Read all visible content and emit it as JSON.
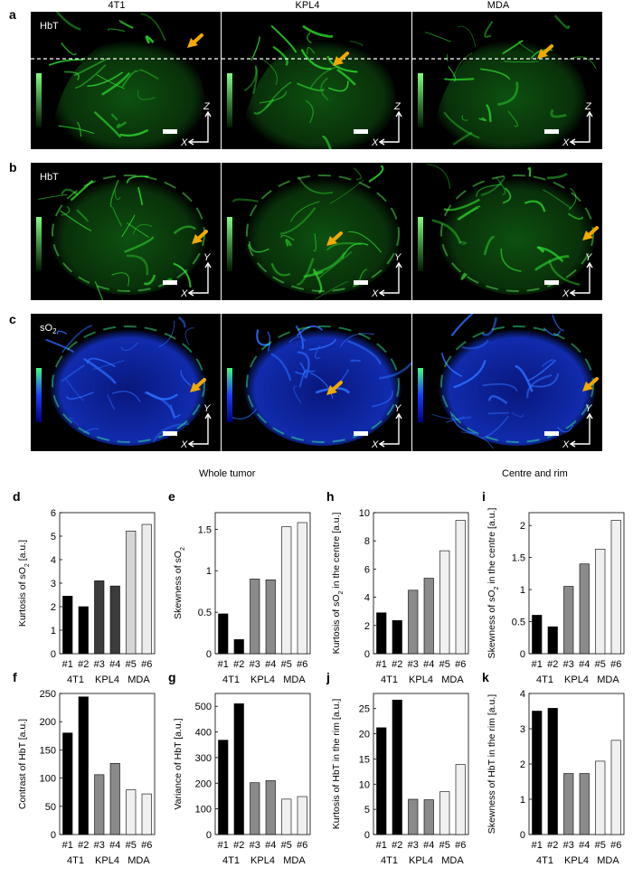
{
  "columns": [
    "4T1",
    "KPL4",
    "MDA"
  ],
  "row_a": {
    "letter": "a",
    "tag": "HbT",
    "axis_h": "X",
    "axis_v": "Z"
  },
  "row_b": {
    "letter": "b",
    "tag": "HbT",
    "axis_h": "X",
    "axis_v": "Y"
  },
  "row_c": {
    "letter": "c",
    "tag_main": "sO",
    "tag_sub": "2",
    "axis_h": "X",
    "axis_v": "Y"
  },
  "section_titles": {
    "left": "Whole tumor",
    "right": "Centre and rim"
  },
  "colors": {
    "dark": "#000000",
    "mid": "#8a8a8a",
    "light": "#ececec",
    "arrow": "#f2a900",
    "green": "#2bd12b",
    "blue": "#1a3cff"
  },
  "chart_data": [
    {
      "id": "d",
      "type": "bar",
      "ylabel": "Kurtosis of sO2 [a.u.]",
      "ylim": [
        0,
        6
      ],
      "yticks": [
        "0",
        "1",
        "2",
        "3",
        "4",
        "5",
        "6"
      ],
      "categories": [
        "#1",
        "#2",
        "#3",
        "#4",
        "#5",
        "#6"
      ],
      "groups": [
        "4T1",
        "KPL4",
        "MDA"
      ],
      "values": [
        2.45,
        2.0,
        3.1,
        2.88,
        5.22,
        5.5
      ],
      "bar_colors": [
        "#000000",
        "#000000",
        "#3c3c3c",
        "#3c3c3c",
        "#d6d6d6",
        "#ececec"
      ]
    },
    {
      "id": "e",
      "type": "bar",
      "ylabel": "Skewness of sO2",
      "ylim": [
        0,
        1.7
      ],
      "yticks": [
        "0",
        "0.5",
        "1",
        "1.5"
      ],
      "categories": [
        "#1",
        "#2",
        "#3",
        "#4",
        "#5",
        "#6"
      ],
      "groups": [
        "4T1",
        "KPL4",
        "MDA"
      ],
      "values": [
        0.48,
        0.17,
        0.9,
        0.89,
        1.53,
        1.58
      ],
      "bar_colors": [
        "#000000",
        "#000000",
        "#8a8a8a",
        "#8a8a8a",
        "#f0f0f0",
        "#f0f0f0"
      ]
    },
    {
      "id": "h",
      "type": "bar",
      "ylabel": "Kurtosis of sO2 in the centre [a.u.]",
      "ylim": [
        0,
        10
      ],
      "yticks": [
        "0",
        "2",
        "4",
        "6",
        "8",
        "10"
      ],
      "categories": [
        "#1",
        "#2",
        "#3",
        "#4",
        "#5",
        "#6"
      ],
      "groups": [
        "4T1",
        "KPL4",
        "MDA"
      ],
      "values": [
        2.9,
        2.35,
        4.5,
        5.35,
        7.3,
        9.45
      ],
      "bar_colors": [
        "#000000",
        "#000000",
        "#8a8a8a",
        "#8a8a8a",
        "#f0f0f0",
        "#f0f0f0"
      ]
    },
    {
      "id": "i",
      "type": "bar",
      "ylabel": "Skewness of sO2 in the centre [a.u.]",
      "ylim": [
        0,
        2.2
      ],
      "yticks": [
        "0",
        "0.5",
        "1",
        "1.5",
        "2"
      ],
      "categories": [
        "#1",
        "#2",
        "#3",
        "#4",
        "#5",
        "#6"
      ],
      "groups": [
        "4T1",
        "KPL4",
        "MDA"
      ],
      "values": [
        0.6,
        0.42,
        1.05,
        1.4,
        1.63,
        2.08
      ],
      "bar_colors": [
        "#000000",
        "#000000",
        "#8a8a8a",
        "#8a8a8a",
        "#f0f0f0",
        "#f0f0f0"
      ]
    },
    {
      "id": "f",
      "type": "bar",
      "ylabel": "Contrast of HbT [a.u.]",
      "ylim": [
        0,
        250
      ],
      "yticks": [
        "0",
        "50",
        "100",
        "150",
        "200",
        "250"
      ],
      "categories": [
        "#1",
        "#2",
        "#3",
        "#4",
        "#5",
        "#6"
      ],
      "groups": [
        "4T1",
        "KPL4",
        "MDA"
      ],
      "values": [
        180,
        244,
        106,
        126,
        79,
        72
      ],
      "bar_colors": [
        "#000000",
        "#000000",
        "#8a8a8a",
        "#8a8a8a",
        "#f0f0f0",
        "#f0f0f0"
      ]
    },
    {
      "id": "g",
      "type": "bar",
      "ylabel": "Variance of HbT [a.u.]",
      "ylim": [
        0,
        550
      ],
      "yticks": [
        "0",
        "100",
        "200",
        "300",
        "400",
        "500"
      ],
      "categories": [
        "#1",
        "#2",
        "#3",
        "#4",
        "#5",
        "#6"
      ],
      "groups": [
        "4T1",
        "KPL4",
        "MDA"
      ],
      "values": [
        368,
        510,
        202,
        210,
        138,
        148
      ],
      "bar_colors": [
        "#000000",
        "#000000",
        "#8a8a8a",
        "#8a8a8a",
        "#f0f0f0",
        "#f0f0f0"
      ]
    },
    {
      "id": "j",
      "type": "bar",
      "ylabel": "Kurtosis of HbT in the rim [a.u.]",
      "ylim": [
        0,
        28
      ],
      "yticks": [
        "0",
        "5",
        "10",
        "15",
        "20",
        "25"
      ],
      "categories": [
        "#1",
        "#2",
        "#3",
        "#4",
        "#5",
        "#6"
      ],
      "groups": [
        "4T1",
        "KPL4",
        "MDA"
      ],
      "values": [
        21.2,
        26.7,
        7.0,
        6.9,
        8.5,
        13.9
      ],
      "bar_colors": [
        "#000000",
        "#000000",
        "#8a8a8a",
        "#8a8a8a",
        "#f0f0f0",
        "#f0f0f0"
      ]
    },
    {
      "id": "k",
      "type": "bar",
      "ylabel": "Skewness of HbT in the rim [a.u.]",
      "ylim": [
        0,
        4
      ],
      "yticks": [
        "0",
        "1",
        "2",
        "3",
        "4"
      ],
      "categories": [
        "#1",
        "#2",
        "#3",
        "#4",
        "#5",
        "#6"
      ],
      "groups": [
        "4T1",
        "KPL4",
        "MDA"
      ],
      "values": [
        3.5,
        3.58,
        1.73,
        1.73,
        2.08,
        2.67
      ],
      "bar_colors": [
        "#000000",
        "#000000",
        "#8a8a8a",
        "#8a8a8a",
        "#f0f0f0",
        "#f0f0f0"
      ]
    }
  ]
}
